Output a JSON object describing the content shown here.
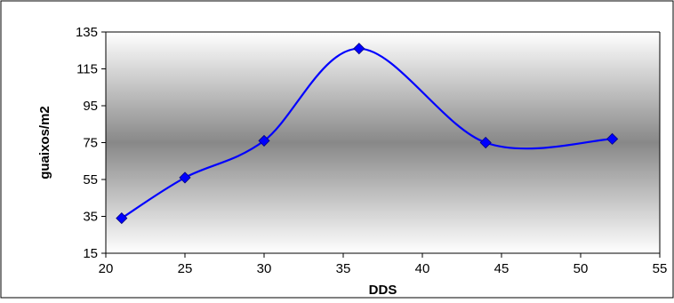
{
  "chart_data": {
    "type": "line",
    "title": "",
    "xlabel": "DDS",
    "ylabel": "guaixos/m2",
    "xlim": [
      20,
      55
    ],
    "ylim": [
      15,
      135
    ],
    "xticks": [
      20,
      25,
      30,
      35,
      40,
      45,
      50,
      55
    ],
    "yticks": [
      15,
      35,
      55,
      75,
      95,
      115,
      135
    ],
    "grid": false,
    "legend": "none",
    "smooth": true,
    "series": [
      {
        "x": [
          21,
          25,
          30,
          36,
          44,
          52
        ],
        "y": [
          34,
          56,
          76,
          126,
          75,
          77
        ],
        "marker": "diamond",
        "color": "#0000ff"
      }
    ],
    "background": {
      "type": "vertical-gradient",
      "stops": [
        "#ffffff",
        "#888888",
        "#ffffff"
      ]
    },
    "frame_color": "#000000"
  }
}
